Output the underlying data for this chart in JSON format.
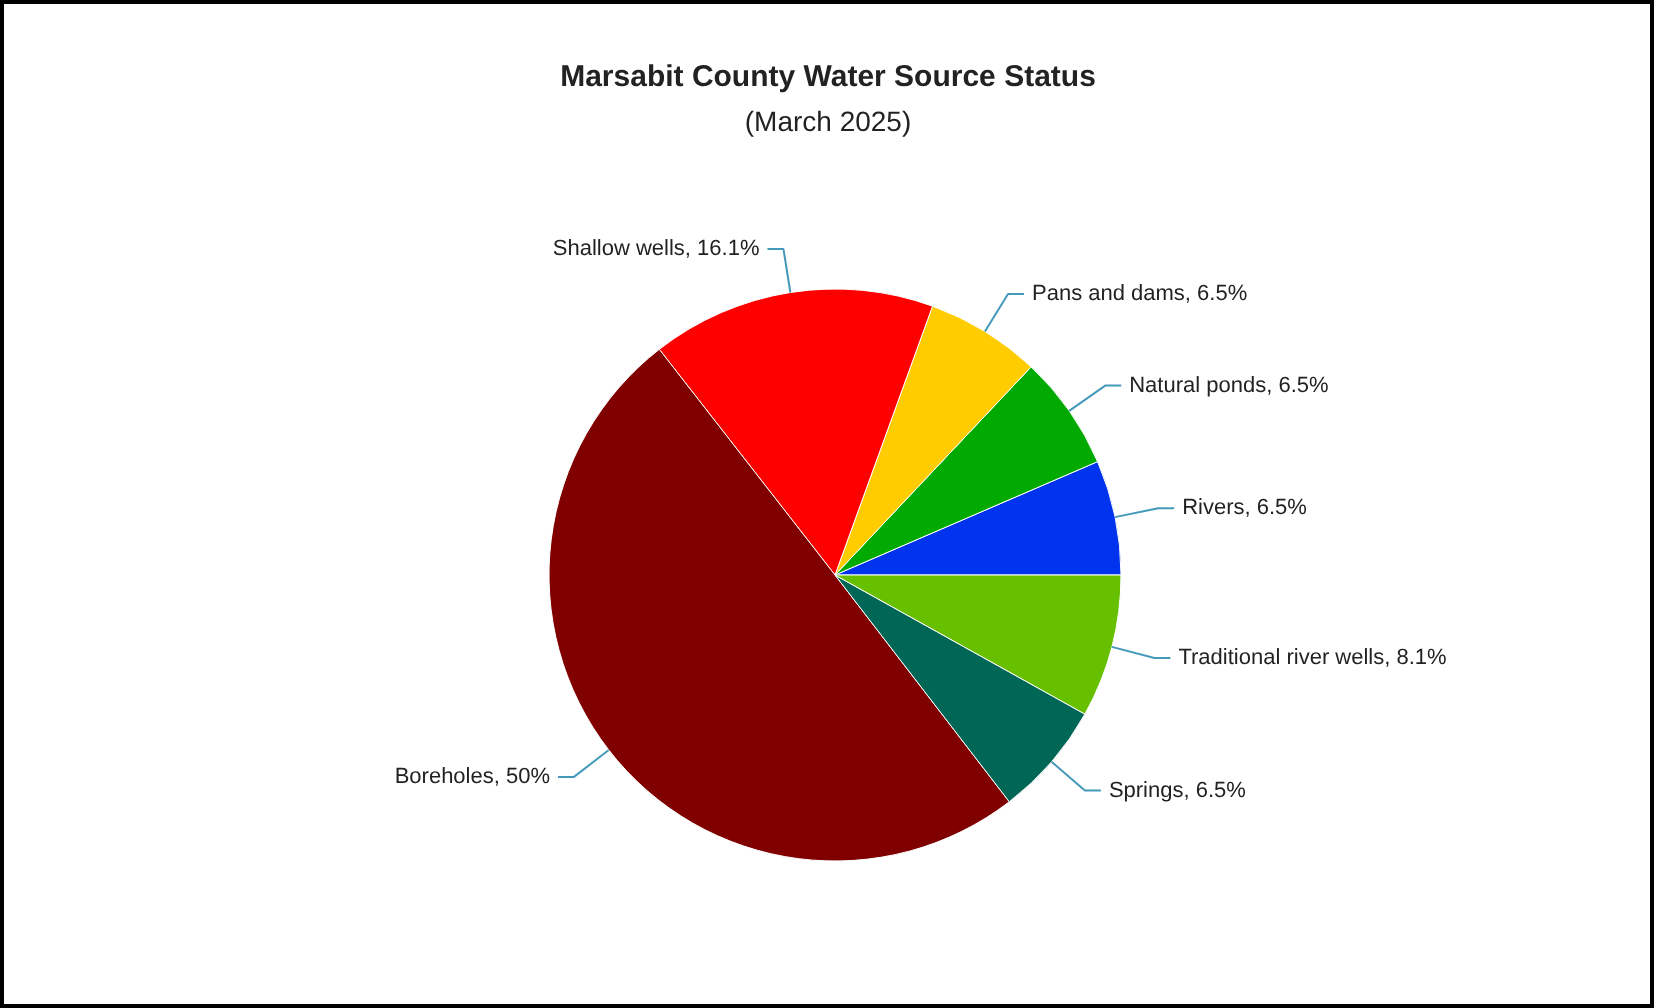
{
  "chart_data": {
    "type": "pie",
    "title": "Marsabit County Water Source Status",
    "subtitle": "(March 2025)",
    "categories": [
      "Rivers",
      "Natural ponds",
      "Pans and dams",
      "Shallow wells",
      "Boreholes",
      "Springs",
      "Traditional river wells"
    ],
    "values": [
      6.5,
      6.5,
      6.5,
      16.1,
      50,
      6.5,
      8.1
    ],
    "colors": [
      "#0033ee",
      "#00aa00",
      "#ffcc00",
      "#ff0000",
      "#800000",
      "#006655",
      "#66c000"
    ],
    "value_labels": [
      "6.5%",
      "6.5%",
      "6.5%",
      "16.1%",
      "50%",
      "6.5%",
      "8.1%"
    ]
  }
}
